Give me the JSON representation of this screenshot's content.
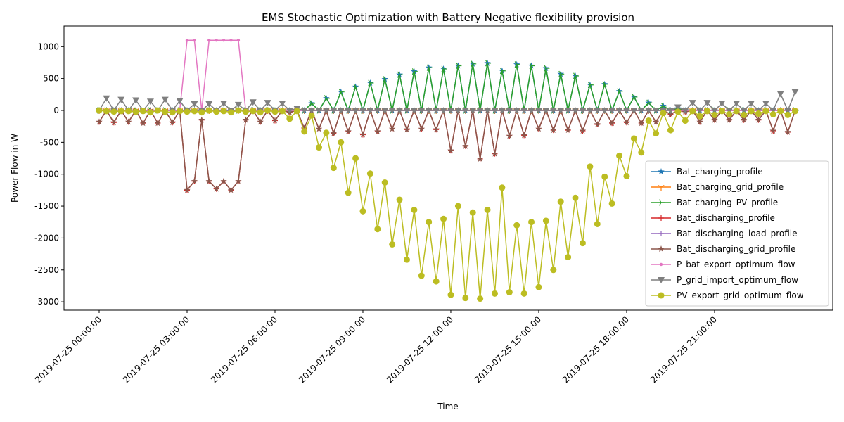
{
  "chart_data": {
    "type": "line",
    "title": "EMS Stochastic Optimization with Battery Negative flexibility provision",
    "xlabel": "Time",
    "ylabel": "Power Flow in W",
    "x": [
      "2019-07-25 00:00:00",
      "2019-07-25 00:15:00",
      "2019-07-25 00:30:00",
      "2019-07-25 00:45:00",
      "2019-07-25 01:00:00",
      "2019-07-25 01:15:00",
      "2019-07-25 01:30:00",
      "2019-07-25 01:45:00",
      "2019-07-25 02:00:00",
      "2019-07-25 02:15:00",
      "2019-07-25 02:30:00",
      "2019-07-25 02:45:00",
      "2019-07-25 03:00:00",
      "2019-07-25 03:15:00",
      "2019-07-25 03:30:00",
      "2019-07-25 03:45:00",
      "2019-07-25 04:00:00",
      "2019-07-25 04:15:00",
      "2019-07-25 04:30:00",
      "2019-07-25 04:45:00",
      "2019-07-25 05:00:00",
      "2019-07-25 05:15:00",
      "2019-07-25 05:30:00",
      "2019-07-25 05:45:00",
      "2019-07-25 06:00:00",
      "2019-07-25 06:15:00",
      "2019-07-25 06:30:00",
      "2019-07-25 06:45:00",
      "2019-07-25 07:00:00",
      "2019-07-25 07:15:00",
      "2019-07-25 07:30:00",
      "2019-07-25 07:45:00",
      "2019-07-25 08:00:00",
      "2019-07-25 08:15:00",
      "2019-07-25 08:30:00",
      "2019-07-25 08:45:00",
      "2019-07-25 09:00:00",
      "2019-07-25 09:15:00",
      "2019-07-25 09:30:00",
      "2019-07-25 09:45:00",
      "2019-07-25 10:00:00",
      "2019-07-25 10:15:00",
      "2019-07-25 10:30:00",
      "2019-07-25 10:45:00",
      "2019-07-25 11:00:00",
      "2019-07-25 11:15:00",
      "2019-07-25 11:30:00",
      "2019-07-25 11:45:00",
      "2019-07-25 12:00:00",
      "2019-07-25 12:15:00",
      "2019-07-25 12:30:00",
      "2019-07-25 12:45:00",
      "2019-07-25 13:00:00",
      "2019-07-25 13:15:00",
      "2019-07-25 13:30:00",
      "2019-07-25 13:45:00",
      "2019-07-25 14:00:00",
      "2019-07-25 14:15:00",
      "2019-07-25 14:30:00",
      "2019-07-25 14:45:00",
      "2019-07-25 15:00:00",
      "2019-07-25 15:15:00",
      "2019-07-25 15:30:00",
      "2019-07-25 15:45:00",
      "2019-07-25 16:00:00",
      "2019-07-25 16:15:00",
      "2019-07-25 16:30:00",
      "2019-07-25 16:45:00",
      "2019-07-25 17:00:00",
      "2019-07-25 17:15:00",
      "2019-07-25 17:30:00",
      "2019-07-25 17:45:00",
      "2019-07-25 18:00:00",
      "2019-07-25 18:15:00",
      "2019-07-25 18:30:00",
      "2019-07-25 18:45:00",
      "2019-07-25 19:00:00",
      "2019-07-25 19:15:00",
      "2019-07-25 19:30:00",
      "2019-07-25 19:45:00",
      "2019-07-25 20:00:00",
      "2019-07-25 20:15:00",
      "2019-07-25 20:30:00",
      "2019-07-25 20:45:00",
      "2019-07-25 21:00:00",
      "2019-07-25 21:15:00",
      "2019-07-25 21:30:00",
      "2019-07-25 21:45:00",
      "2019-07-25 22:00:00",
      "2019-07-25 22:15:00",
      "2019-07-25 22:30:00",
      "2019-07-25 22:45:00",
      "2019-07-25 23:00:00",
      "2019-07-25 23:15:00",
      "2019-07-25 23:30:00",
      "2019-07-25 23:45:00"
    ],
    "xlim": [
      "2019-07-24 22:48:00",
      "2019-07-26 01:02:00"
    ],
    "xticks": [
      "2019-07-25 00:00:00",
      "2019-07-25 03:00:00",
      "2019-07-25 06:00:00",
      "2019-07-25 09:00:00",
      "2019-07-25 12:00:00",
      "2019-07-25 15:00:00",
      "2019-07-25 18:00:00",
      "2019-07-25 21:00:00"
    ],
    "ylim": [
      -3131,
      1323
    ],
    "yticks": [
      -3000,
      -2500,
      -2000,
      -1500,
      -1000,
      -500,
      0,
      500,
      1000
    ],
    "legend": "lower right",
    "series": [
      {
        "name": "Bat_charging_profile",
        "color": "#1f77b4",
        "marker": "*",
        "values": [
          0,
          0,
          0,
          0,
          0,
          0,
          0,
          0,
          0,
          0,
          0,
          0,
          0,
          0,
          0,
          0,
          0,
          0,
          0,
          0,
          0,
          0,
          0,
          0,
          0,
          0,
          0,
          0,
          0,
          110,
          0,
          190,
          0,
          290,
          0,
          370,
          0,
          430,
          0,
          490,
          0,
          560,
          0,
          610,
          0,
          670,
          0,
          650,
          0,
          700,
          0,
          730,
          0,
          740,
          0,
          620,
          0,
          720,
          0,
          700,
          0,
          660,
          0,
          570,
          0,
          540,
          0,
          400,
          0,
          410,
          0,
          300,
          0,
          210,
          0,
          120,
          0,
          70,
          0,
          30,
          0,
          0,
          0,
          0,
          0,
          0,
          0,
          0,
          0,
          0,
          0,
          0,
          0,
          0,
          0,
          0
        ]
      },
      {
        "name": "Bat_charging_grid_profile",
        "color": "#ff7f0e",
        "marker": "1",
        "values": [
          0,
          0,
          0,
          0,
          0,
          0,
          0,
          0,
          0,
          0,
          0,
          0,
          0,
          0,
          0,
          0,
          0,
          0,
          0,
          0,
          0,
          0,
          0,
          0,
          0,
          0,
          0,
          0,
          0,
          0,
          0,
          0,
          0,
          0,
          0,
          0,
          0,
          0,
          0,
          0,
          0,
          0,
          0,
          0,
          0,
          0,
          0,
          0,
          0,
          0,
          0,
          0,
          0,
          0,
          0,
          0,
          0,
          0,
          0,
          0,
          0,
          0,
          0,
          0,
          0,
          0,
          0,
          0,
          0,
          0,
          0,
          0,
          0,
          0,
          0,
          0,
          0,
          0,
          0,
          0,
          0,
          0,
          0,
          0,
          0,
          0,
          0,
          0,
          0,
          0,
          0,
          0,
          0,
          0,
          0,
          0
        ]
      },
      {
        "name": "Bat_charging_PV_profile",
        "color": "#2ca02c",
        "marker": "4",
        "values": [
          0,
          0,
          0,
          0,
          0,
          0,
          0,
          0,
          0,
          0,
          0,
          0,
          0,
          0,
          0,
          0,
          0,
          0,
          0,
          0,
          0,
          0,
          0,
          0,
          0,
          0,
          0,
          0,
          0,
          110,
          0,
          190,
          0,
          290,
          0,
          370,
          0,
          430,
          0,
          490,
          0,
          560,
          0,
          610,
          0,
          670,
          0,
          650,
          0,
          700,
          0,
          730,
          0,
          740,
          0,
          620,
          0,
          720,
          0,
          700,
          0,
          660,
          0,
          570,
          0,
          540,
          0,
          400,
          0,
          410,
          0,
          300,
          0,
          210,
          0,
          120,
          0,
          70,
          0,
          30,
          0,
          0,
          0,
          0,
          0,
          0,
          0,
          0,
          0,
          0,
          0,
          0,
          0,
          0,
          0,
          0
        ]
      },
      {
        "name": "Bat_discharging_profile",
        "color": "#d62728",
        "marker": "+",
        "values": [
          -180,
          0,
          -190,
          0,
          -180,
          0,
          -200,
          0,
          -200,
          0,
          -190,
          0,
          -1250,
          -1110,
          -150,
          -1110,
          -1230,
          -1110,
          -1250,
          -1110,
          -150,
          0,
          -180,
          0,
          -160,
          0,
          -30,
          0,
          -280,
          0,
          -290,
          0,
          -360,
          0,
          -330,
          0,
          -380,
          0,
          -330,
          0,
          -290,
          0,
          -300,
          0,
          -290,
          0,
          -300,
          0,
          -630,
          0,
          -560,
          0,
          -760,
          0,
          -680,
          0,
          -400,
          0,
          -390,
          0,
          -290,
          0,
          -310,
          0,
          -310,
          0,
          -320,
          0,
          -220,
          0,
          -200,
          0,
          -190,
          0,
          -200,
          0,
          -180,
          0,
          -60,
          0,
          -20,
          0,
          -180,
          0,
          -150,
          0,
          -150,
          0,
          -150,
          0,
          -150,
          0,
          -320,
          0,
          -340,
          0
        ]
      },
      {
        "name": "Bat_discharging_load_profile",
        "color": "#9467bd",
        "marker": "+",
        "values": [
          0,
          0,
          0,
          0,
          0,
          0,
          0,
          0,
          0,
          0,
          0,
          0,
          0,
          0,
          0,
          0,
          0,
          0,
          0,
          0,
          0,
          0,
          0,
          0,
          0,
          0,
          0,
          0,
          0,
          0,
          0,
          0,
          0,
          0,
          0,
          0,
          0,
          0,
          0,
          0,
          0,
          0,
          0,
          0,
          0,
          0,
          0,
          0,
          0,
          0,
          0,
          0,
          0,
          0,
          0,
          0,
          0,
          0,
          0,
          0,
          0,
          0,
          0,
          0,
          0,
          0,
          0,
          0,
          0,
          0,
          0,
          0,
          0,
          0,
          0,
          0,
          0,
          0,
          0,
          0,
          0,
          0,
          0,
          0,
          0,
          0,
          0,
          0,
          0,
          0,
          0,
          0,
          0,
          0,
          0,
          0
        ]
      },
      {
        "name": "Bat_discharging_grid_profile",
        "color": "#8c564b",
        "marker": "*",
        "values": [
          -180,
          0,
          -190,
          0,
          -180,
          0,
          -200,
          0,
          -200,
          0,
          -190,
          0,
          -1250,
          -1110,
          -150,
          -1110,
          -1230,
          -1110,
          -1250,
          -1110,
          -150,
          0,
          -180,
          0,
          -160,
          0,
          -30,
          0,
          -280,
          0,
          -290,
          0,
          -360,
          0,
          -330,
          0,
          -380,
          0,
          -330,
          0,
          -290,
          0,
          -300,
          0,
          -290,
          0,
          -300,
          0,
          -630,
          0,
          -560,
          0,
          -760,
          0,
          -680,
          0,
          -400,
          0,
          -390,
          0,
          -290,
          0,
          -310,
          0,
          -310,
          0,
          -320,
          0,
          -220,
          0,
          -200,
          0,
          -190,
          0,
          -200,
          0,
          -180,
          0,
          -60,
          0,
          -20,
          0,
          -180,
          0,
          -150,
          0,
          -150,
          0,
          -150,
          0,
          -150,
          0,
          -320,
          0,
          -340,
          0
        ]
      },
      {
        "name": "P_bat_export_optimum_flow",
        "color": "#e377c2",
        "marker": ".",
        "values": [
          0,
          0,
          0,
          0,
          0,
          0,
          0,
          0,
          0,
          0,
          0,
          0,
          1100,
          1100,
          0,
          1100,
          1100,
          1100,
          1100,
          1100,
          0,
          0,
          0,
          0,
          0,
          0,
          0,
          0,
          0,
          0,
          0,
          0,
          0,
          0,
          0,
          0,
          0,
          0,
          0,
          0,
          0,
          0,
          0,
          0,
          0,
          0,
          0,
          0,
          0,
          0,
          0,
          0,
          0,
          0,
          0,
          0,
          0,
          0,
          0,
          0,
          0,
          0,
          0,
          0,
          0,
          0,
          0,
          0,
          0,
          0,
          0,
          0,
          0,
          0,
          0,
          0,
          0,
          0,
          0,
          0,
          0,
          0,
          0,
          0,
          0,
          0,
          0,
          0,
          0,
          0,
          0,
          0,
          0,
          0,
          0,
          0
        ]
      },
      {
        "name": "P_grid_import_optimum_flow",
        "color": "#7f7f7f",
        "marker": "v",
        "values": [
          0,
          190,
          0,
          170,
          0,
          160,
          0,
          140,
          0,
          170,
          0,
          150,
          0,
          100,
          0,
          100,
          0,
          110,
          0,
          90,
          0,
          130,
          0,
          120,
          0,
          110,
          0,
          30,
          0,
          0,
          0,
          0,
          0,
          0,
          0,
          0,
          0,
          0,
          0,
          0,
          0,
          0,
          0,
          0,
          0,
          0,
          0,
          0,
          0,
          0,
          0,
          0,
          0,
          0,
          0,
          0,
          0,
          0,
          0,
          0,
          0,
          0,
          0,
          0,
          0,
          0,
          0,
          0,
          0,
          0,
          0,
          0,
          0,
          0,
          0,
          0,
          0,
          0,
          0,
          50,
          0,
          120,
          0,
          120,
          0,
          110,
          0,
          110,
          0,
          110,
          0,
          110,
          0,
          260,
          0,
          290
        ]
      },
      {
        "name": "PV_export_grid_optimum_flow",
        "color": "#bcbd22",
        "marker": "o",
        "values": [
          0,
          -10,
          -20,
          -10,
          -10,
          -20,
          -10,
          -30,
          0,
          -20,
          -30,
          -10,
          -20,
          -10,
          -30,
          0,
          -20,
          -10,
          -30,
          0,
          -20,
          -10,
          -30,
          0,
          -20,
          -10,
          -130,
          -10,
          -330,
          -80,
          -580,
          -350,
          -900,
          -500,
          -1290,
          -750,
          -1580,
          -990,
          -1860,
          -1130,
          -2100,
          -1400,
          -2340,
          -1560,
          -2590,
          -1750,
          -2680,
          -1700,
          -2890,
          -1500,
          -2940,
          -1600,
          -2950,
          -1560,
          -2870,
          -1210,
          -2850,
          -1800,
          -2870,
          -1750,
          -2770,
          -1730,
          -2500,
          -1430,
          -2300,
          -1370,
          -2080,
          -880,
          -1780,
          -1040,
          -1460,
          -710,
          -1030,
          -440,
          -660,
          -160,
          -360,
          -40,
          -310,
          -20,
          -160,
          -10,
          -90,
          -10,
          -70,
          -10,
          -60,
          -10,
          -70,
          -10,
          -50,
          -10,
          -60,
          -10,
          -70,
          -10
        ]
      }
    ]
  }
}
